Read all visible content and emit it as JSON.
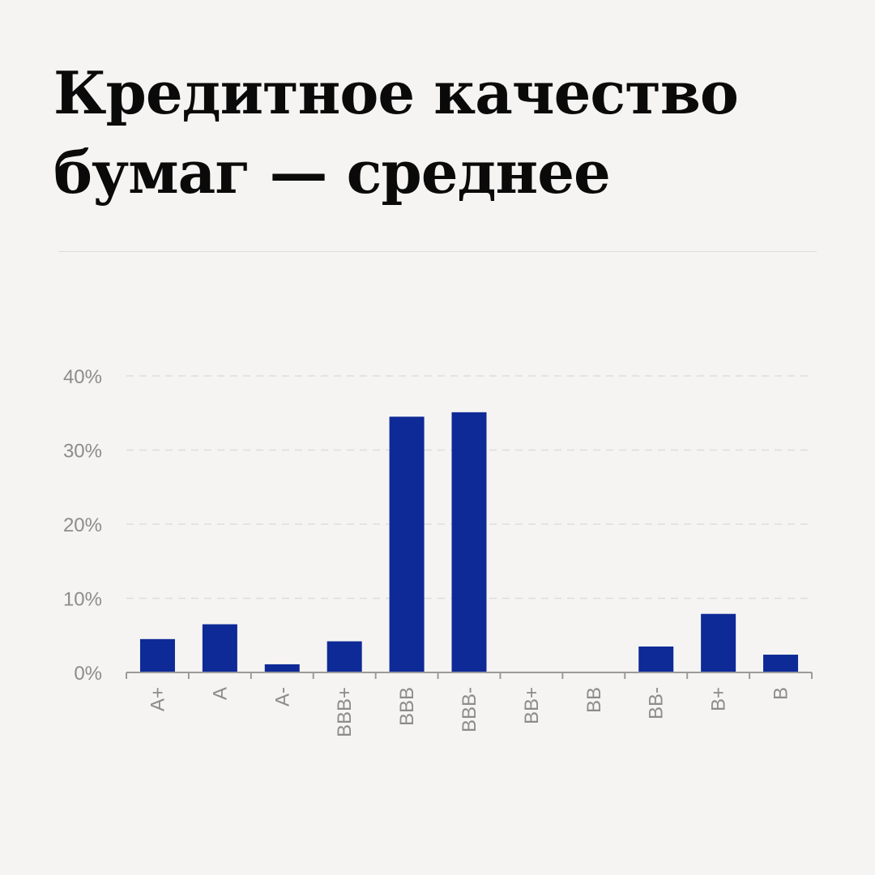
{
  "page": {
    "title_line1": "Кредитное качество",
    "title_line2": "бумаг — среднее"
  },
  "colors": {
    "background": "#f5f4f2",
    "bar": "#0d2a96",
    "gridline": "#dddddd",
    "axis": "#9a9a9a",
    "tick_text": "#8c8c8c"
  },
  "chart_data": {
    "type": "bar",
    "categories": [
      "A+",
      "A",
      "A-",
      "BBB+",
      "BBB",
      "BBB-",
      "BB+",
      "BB",
      "BB-",
      "B+",
      "B"
    ],
    "values": [
      4.5,
      6.5,
      1.1,
      4.2,
      34.5,
      35.1,
      0,
      0,
      3.5,
      7.9,
      2.4
    ],
    "ylim": [
      0,
      40
    ],
    "yticks": [
      0,
      10,
      20,
      30,
      40
    ],
    "ytick_labels": [
      "0%",
      "10%",
      "20%",
      "30%",
      "40%"
    ],
    "grid": true,
    "xlabel": "",
    "ylabel": "",
    "legend": "none"
  }
}
